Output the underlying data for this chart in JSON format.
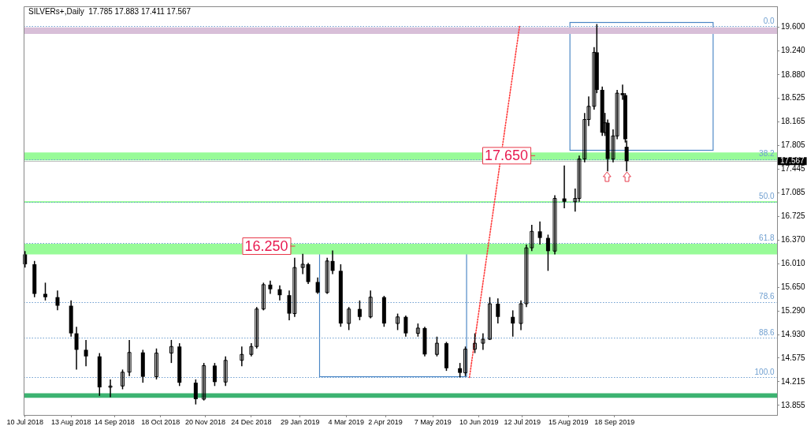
{
  "chart_data": {
    "type": "candlestick",
    "title": "SILVERs+,Daily  17.785 17.883 17.411 17.567",
    "x": [
      "2018-07-10",
      "2018-07-17",
      "2018-07-25",
      "2018-08-03",
      "2018-08-13",
      "2018-08-17",
      "2018-08-24",
      "2018-09-03",
      "2018-09-11",
      "2018-09-20",
      "2018-09-25",
      "2018-10-05",
      "2018-10-15",
      "2018-10-26",
      "2018-11-01",
      "2018-11-13",
      "2018-11-19",
      "2018-11-27",
      "2018-12-05",
      "2018-12-17",
      "2018-12-24",
      "2018-12-28",
      "2019-01-02",
      "2019-01-07",
      "2019-01-14",
      "2019-01-21",
      "2019-01-25",
      "2019-01-31",
      "2019-02-04",
      "2019-02-11",
      "2019-02-18",
      "2019-02-22",
      "2019-02-28",
      "2019-03-06",
      "2019-03-14",
      "2019-03-22",
      "2019-04-01",
      "2019-04-11",
      "2019-04-17",
      "2019-04-26",
      "2019-05-01",
      "2019-05-10",
      "2019-05-17",
      "2019-05-27",
      "2019-05-31",
      "2019-06-07",
      "2019-06-13",
      "2019-06-18",
      "2019-06-24",
      "2019-07-05",
      "2019-07-11",
      "2019-07-15",
      "2019-07-19",
      "2019-07-25",
      "2019-07-31",
      "2019-08-05",
      "2019-08-12",
      "2019-08-20",
      "2019-08-23",
      "2019-08-27",
      "2019-08-30",
      "2019-09-03",
      "2019-09-05",
      "2019-09-09",
      "2019-09-11",
      "2019-09-13",
      "2019-09-17",
      "2019-09-20",
      "2019-09-24",
      "2019-09-26",
      "2019-09-27"
    ],
    "ohlc": [
      [
        16.15,
        16.2,
        15.95,
        16.0
      ],
      [
        16.0,
        16.05,
        15.5,
        15.55
      ],
      [
        15.55,
        15.72,
        15.45,
        15.5
      ],
      [
        15.5,
        15.6,
        15.3,
        15.37
      ],
      [
        15.37,
        15.45,
        14.9,
        14.95
      ],
      [
        14.95,
        15.05,
        14.4,
        14.7
      ],
      [
        14.7,
        14.85,
        14.45,
        14.6
      ],
      [
        14.6,
        14.65,
        14.0,
        14.13
      ],
      [
        14.13,
        14.25,
        13.98,
        14.15
      ],
      [
        14.15,
        14.4,
        14.1,
        14.36
      ],
      [
        14.36,
        14.85,
        14.3,
        14.66
      ],
      [
        14.66,
        14.7,
        14.2,
        14.29
      ],
      [
        14.29,
        14.72,
        14.25,
        14.65
      ],
      [
        14.65,
        14.85,
        14.5,
        14.75
      ],
      [
        14.75,
        14.8,
        14.15,
        14.2
      ],
      [
        14.2,
        14.25,
        13.87,
        13.95
      ],
      [
        13.95,
        14.5,
        13.93,
        14.46
      ],
      [
        14.46,
        14.5,
        14.15,
        14.21
      ],
      [
        14.21,
        14.6,
        14.15,
        14.54
      ],
      [
        14.54,
        14.75,
        14.45,
        14.63
      ],
      [
        14.63,
        14.8,
        14.6,
        14.75
      ],
      [
        14.75,
        15.35,
        14.72,
        15.32
      ],
      [
        15.32,
        15.72,
        15.3,
        15.69
      ],
      [
        15.69,
        15.75,
        15.55,
        15.62
      ],
      [
        15.62,
        15.68,
        15.45,
        15.53
      ],
      [
        15.53,
        15.6,
        15.15,
        15.25
      ],
      [
        15.25,
        16.1,
        15.2,
        15.95
      ],
      [
        15.95,
        16.16,
        15.85,
        16.0
      ],
      [
        16.0,
        16.02,
        15.7,
        15.73
      ],
      [
        15.73,
        15.8,
        15.55,
        15.57
      ],
      [
        15.57,
        16.1,
        15.55,
        16.05
      ],
      [
        16.05,
        16.21,
        15.85,
        15.9
      ],
      [
        15.9,
        16.0,
        15.05,
        15.1
      ],
      [
        15.1,
        15.35,
        15.0,
        15.32
      ],
      [
        15.32,
        15.45,
        15.15,
        15.2
      ],
      [
        15.2,
        15.6,
        15.18,
        15.5
      ],
      [
        15.5,
        15.52,
        15.05,
        15.1
      ],
      [
        15.1,
        15.25,
        15.0,
        15.2
      ],
      [
        15.2,
        15.22,
        14.9,
        14.95
      ],
      [
        14.95,
        15.1,
        14.9,
        15.03
      ],
      [
        15.03,
        15.05,
        14.6,
        14.63
      ],
      [
        14.63,
        14.9,
        14.6,
        14.8
      ],
      [
        14.8,
        14.82,
        14.38,
        14.42
      ],
      [
        14.42,
        14.5,
        14.28,
        14.35
      ],
      [
        14.35,
        14.75,
        14.3,
        14.71
      ],
      [
        14.71,
        14.95,
        14.65,
        14.8
      ],
      [
        14.8,
        14.95,
        14.7,
        14.86
      ],
      [
        14.86,
        15.5,
        14.85,
        15.4
      ],
      [
        15.4,
        15.48,
        15.1,
        15.2
      ],
      [
        15.2,
        15.3,
        14.9,
        15.1
      ],
      [
        15.1,
        15.45,
        15.0,
        15.4
      ],
      [
        15.4,
        16.3,
        15.35,
        16.25
      ],
      [
        16.25,
        16.6,
        16.2,
        16.5
      ],
      [
        16.5,
        16.65,
        16.3,
        16.4
      ],
      [
        16.4,
        16.45,
        15.9,
        16.2
      ],
      [
        16.2,
        17.05,
        16.15,
        17.0
      ],
      [
        17.0,
        17.5,
        16.85,
        16.95
      ],
      [
        16.95,
        17.15,
        16.8,
        17.0
      ],
      [
        17.0,
        17.65,
        16.95,
        17.6
      ],
      [
        17.6,
        18.3,
        17.55,
        18.2
      ],
      [
        18.2,
        18.55,
        18.1,
        18.4
      ],
      [
        18.4,
        19.3,
        18.35,
        19.22
      ],
      [
        19.22,
        19.65,
        18.6,
        18.65
      ],
      [
        18.65,
        18.7,
        17.95,
        18.0
      ],
      [
        18.0,
        18.3,
        17.95,
        18.15
      ],
      [
        18.15,
        18.2,
        17.41,
        17.6
      ],
      [
        17.6,
        18.05,
        17.55,
        17.95
      ],
      [
        17.95,
        18.65,
        17.9,
        18.6
      ],
      [
        18.6,
        18.73,
        18.5,
        18.57
      ],
      [
        18.57,
        18.6,
        17.85,
        17.9
      ],
      [
        17.785,
        17.883,
        17.411,
        17.567
      ]
    ],
    "color": "#000000",
    "series": [
      {
        "type": "line",
        "x": [
          "2019-06-03",
          "2019-07-10"
        ],
        "values": [
          14.28,
          19.62
        ],
        "color": "#ff3b3b",
        "line_style": "dotted",
        "marker": "none"
      }
    ],
    "xlim": [
      "2018-07-09",
      "2020-01-16"
    ],
    "xticks": [
      {
        "value": "2018-07-10",
        "label": "10 Jul 2018"
      },
      {
        "value": "2018-08-13",
        "label": "13 Aug 2018"
      },
      {
        "value": "2018-09-14",
        "label": "14 Sep 2018"
      },
      {
        "value": "2018-10-18",
        "label": "18 Oct 2018"
      },
      {
        "value": "2018-11-20",
        "label": "20 Nov 2018"
      },
      {
        "value": "2018-12-24",
        "label": "24 Dec 2018"
      },
      {
        "value": "2019-01-29",
        "label": "29 Jan 2019"
      },
      {
        "value": "2019-03-04",
        "label": "4 Mar 2019"
      },
      {
        "value": "2019-04-02",
        "label": "2 Apr 2019"
      },
      {
        "value": "2019-05-07",
        "label": "7 May 2019"
      },
      {
        "value": "2019-06-10",
        "label": "10 Jun 2019"
      },
      {
        "value": "2019-07-12",
        "label": "12 Jul 2019"
      },
      {
        "value": "2019-08-15",
        "label": "15 Aug 2019"
      },
      {
        "value": "2019-09-18",
        "label": "18 Sep 2019"
      }
    ],
    "ylim": [
      13.71,
      19.92
    ],
    "yticks": [
      {
        "value": 13.855,
        "label": "13.855"
      },
      {
        "value": 14.215,
        "label": "14.215"
      },
      {
        "value": 14.575,
        "label": "14.575"
      },
      {
        "value": 14.93,
        "label": "14.930"
      },
      {
        "value": 15.29,
        "label": "15.290"
      },
      {
        "value": 15.65,
        "label": "15.650"
      },
      {
        "value": 16.01,
        "label": "16.010"
      },
      {
        "value": 16.37,
        "label": "16.370"
      },
      {
        "value": 16.725,
        "label": "16.725"
      },
      {
        "value": 17.085,
        "label": "17.085"
      },
      {
        "value": 17.445,
        "label": "17.445"
      },
      {
        "value": 17.805,
        "label": "17.805"
      },
      {
        "value": 18.165,
        "label": "18.165"
      },
      {
        "value": 18.525,
        "label": "18.525"
      },
      {
        "value": 18.88,
        "label": "18.880"
      },
      {
        "value": 19.24,
        "label": "19.240"
      },
      {
        "value": 19.6,
        "label": "19.600"
      }
    ],
    "bands": [
      {
        "axis": "y",
        "from": 13.97,
        "to": 14.04,
        "color": "#3cb371"
      },
      {
        "axis": "y",
        "from": 16.15,
        "to": 16.31,
        "color": "#98fb98"
      },
      {
        "axis": "y",
        "from": 16.94,
        "to": 16.96,
        "color": "#98fb98"
      },
      {
        "axis": "y",
        "from": 17.58,
        "to": 17.7,
        "color": "#98fb98"
      },
      {
        "axis": "y",
        "from": 19.5,
        "to": 19.6,
        "color": "#d8bfd8"
      }
    ],
    "ref_lines": [
      {
        "axis": "y",
        "value": 19.62,
        "color": "#6f9fd0",
        "line_style": "dotted"
      },
      {
        "axis": "y",
        "value": 17.6,
        "color": "#6f9fd0",
        "line_style": "dotted"
      },
      {
        "axis": "y",
        "value": 16.95,
        "color": "#6f9fd0",
        "line_style": "dotted"
      },
      {
        "axis": "y",
        "value": 16.32,
        "color": "#6f9fd0",
        "line_style": "dotted"
      },
      {
        "axis": "y",
        "value": 15.43,
        "color": "#6f9fd0",
        "line_style": "dotted"
      },
      {
        "axis": "y",
        "value": 14.88,
        "color": "#6f9fd0",
        "line_style": "dotted"
      },
      {
        "axis": "y",
        "value": 14.28,
        "color": "#6f9fd0",
        "line_style": "dotted"
      },
      {
        "axis": "y",
        "value": 17.567,
        "label": "17.567",
        "color": "#c0c0c0",
        "line_style": "solid"
      }
    ],
    "annotations": [
      {
        "text": "17.650",
        "x": "2019-07-18",
        "y": 17.65
      },
      "16.250",
      {
        "text": "0.0",
        "x": "2020-01-14",
        "y": 19.62
      },
      {
        "text": "38.2",
        "x": "2020-01-14",
        "y": 17.6
      },
      {
        "text": "50.0",
        "x": "2020-01-14",
        "y": 16.95
      },
      {
        "text": "61.8",
        "x": "2020-01-14",
        "y": 16.32
      },
      {
        "text": "78.6",
        "x": "2020-01-14",
        "y": 15.43
      },
      {
        "text": "88.6",
        "x": "2020-01-14",
        "y": 14.88
      },
      {
        "text": "100.0",
        "x": "2020-01-14",
        "y": 14.28
      }
    ],
    "grid": false,
    "legend": false
  }
}
